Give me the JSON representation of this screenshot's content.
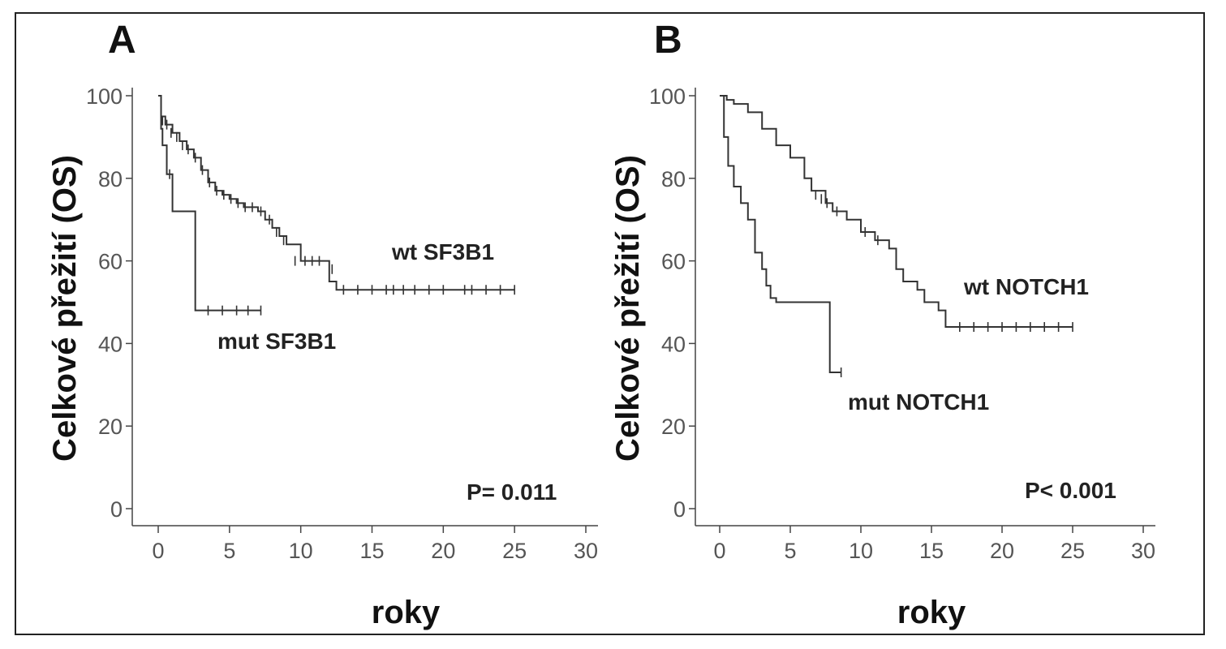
{
  "chart_data": [
    {
      "type": "line",
      "panel_label": "A",
      "xlabel": "roky",
      "ylabel": "Celkové přežití (OS)",
      "xlim": [
        0,
        30
      ],
      "ylim": [
        0,
        100
      ],
      "xticks": [
        0,
        5,
        10,
        15,
        20,
        25,
        30
      ],
      "yticks": [
        0,
        20,
        40,
        60,
        80,
        100
      ],
      "pvalue": "P= 0.011",
      "series": [
        {
          "name": "wt SF3B1",
          "color": "#333333",
          "x": [
            0,
            0.2,
            0.5,
            1,
            1.5,
            2,
            2.5,
            3,
            3.5,
            4,
            4.5,
            5,
            5.5,
            6,
            7,
            7.5,
            8,
            8.5,
            9,
            10,
            11,
            12,
            12.5,
            25
          ],
          "y": [
            100,
            95,
            93,
            91,
            89,
            87,
            85,
            82,
            79,
            77,
            76,
            75,
            74,
            73,
            72,
            70,
            68,
            66,
            64,
            60,
            60,
            55,
            53,
            53
          ],
          "censor_x": [
            0.3,
            0.6,
            0.9,
            1.3,
            1.7,
            2.1,
            2.6,
            3.1,
            3.6,
            4.1,
            4.6,
            5.1,
            5.6,
            6.1,
            6.6,
            7.2,
            7.8,
            8.3,
            8.8,
            9.6,
            10.3,
            10.8,
            11.3,
            12.2,
            13,
            14,
            15,
            16,
            16.5,
            17.2,
            18,
            19,
            20,
            21.5,
            22,
            23,
            24,
            25
          ],
          "censor_y": [
            94,
            93,
            91,
            90,
            88,
            87,
            85,
            82,
            79,
            77,
            76,
            75,
            74,
            73,
            73,
            72,
            70,
            67,
            65,
            60,
            60,
            60,
            60,
            58,
            53,
            53,
            53,
            53,
            53,
            53,
            53,
            53,
            53,
            53,
            53,
            53,
            53,
            53
          ]
        },
        {
          "name": "mut SF3B1",
          "color": "#333333",
          "x": [
            0,
            0.2,
            0.3,
            0.6,
            1.0,
            2.5,
            2.6,
            7.2
          ],
          "y": [
            100,
            92,
            88,
            81,
            72,
            72,
            48,
            48
          ],
          "censor_x": [
            0.8,
            3.5,
            4.5,
            5.5,
            6.3,
            7.2
          ],
          "censor_y": [
            81,
            48,
            48,
            48,
            48,
            48
          ]
        }
      ]
    },
    {
      "type": "line",
      "panel_label": "B",
      "xlabel": "roky",
      "ylabel": "Celkové přežití (OS)",
      "xlim": [
        0,
        30
      ],
      "ylim": [
        0,
        100
      ],
      "xticks": [
        0,
        5,
        10,
        15,
        20,
        25,
        30
      ],
      "yticks": [
        0,
        20,
        40,
        60,
        80,
        100
      ],
      "pvalue": "P< 0.001",
      "series": [
        {
          "name": "wt NOTCH1",
          "color": "#333333",
          "x": [
            0,
            0.5,
            1,
            2,
            3,
            4,
            5,
            6,
            6.5,
            7.5,
            8,
            9,
            10,
            11,
            12,
            12.5,
            13,
            14,
            14.5,
            15.5,
            16,
            25
          ],
          "y": [
            100,
            99,
            98,
            96,
            92,
            88,
            85,
            80,
            77,
            74,
            72,
            70,
            67,
            65,
            63,
            58,
            55,
            53,
            50,
            48,
            44,
            44
          ],
          "censor_x": [
            6.8,
            7.2,
            7.6,
            8.3,
            10.3,
            11.2,
            17,
            18,
            19,
            20,
            21,
            22,
            23,
            24,
            25
          ],
          "censor_y": [
            76,
            75,
            74,
            72,
            67,
            65,
            44,
            44,
            44,
            44,
            44,
            44,
            44,
            44,
            44
          ]
        },
        {
          "name": "mut NOTCH1",
          "color": "#333333",
          "x": [
            0,
            0.3,
            0.6,
            1,
            1.5,
            2,
            2.5,
            3,
            3.3,
            3.6,
            4,
            7.7,
            7.8,
            8.6
          ],
          "y": [
            100,
            90,
            83,
            78,
            74,
            70,
            62,
            58,
            54,
            51,
            50,
            50,
            33,
            33
          ],
          "censor_x": [
            8.6
          ],
          "censor_y": [
            33
          ]
        }
      ]
    }
  ]
}
